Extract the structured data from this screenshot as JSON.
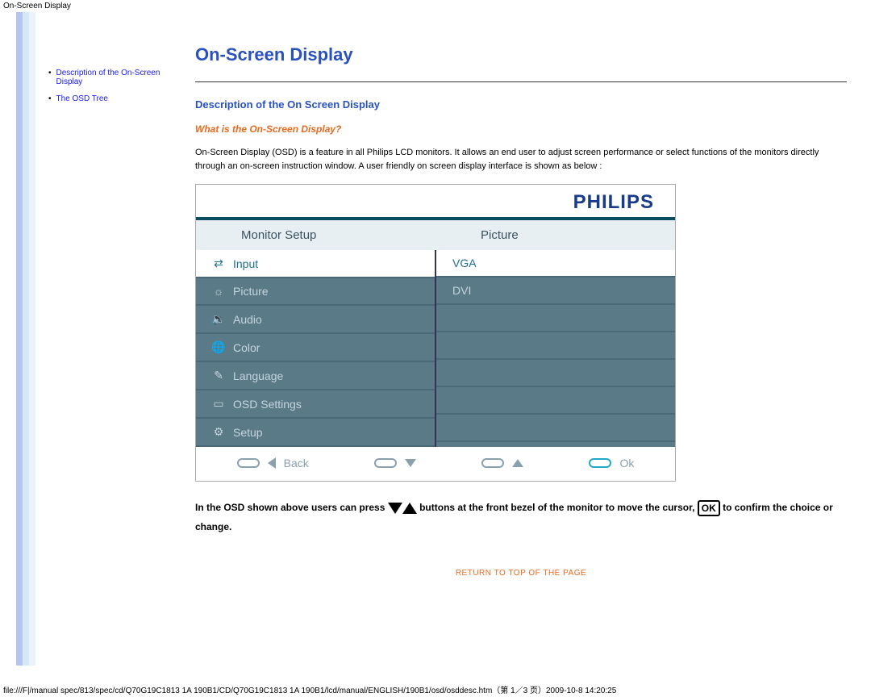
{
  "breadcrumb": "On-Screen Display",
  "sidebar": {
    "items": [
      {
        "label": "Description of the On-Screen Display"
      },
      {
        "label": "The OSD Tree"
      }
    ]
  },
  "main": {
    "title": "On-Screen Display",
    "section_heading": "Description of the On Screen Display",
    "sub_heading": "What is the On-Screen Display?",
    "paragraph": "On-Screen Display (OSD) is a feature in all Philips LCD monitors. It allows an end user to adjust screen performance or select functions of the monitors directly through an on-screen instruction window. A user friendly on screen display interface is shown as below :"
  },
  "osd": {
    "brand": "PHILIPS",
    "left_header": "Monitor Setup",
    "right_header": "Picture",
    "left_items": [
      {
        "icon": "⇄",
        "label": "Input",
        "selected": true
      },
      {
        "icon": "☼",
        "label": "Picture",
        "selected": false
      },
      {
        "icon": "🔈",
        "label": "Audio",
        "selected": false
      },
      {
        "icon": "🌐",
        "label": "Color",
        "selected": false
      },
      {
        "icon": "✎",
        "label": "Language",
        "selected": false
      },
      {
        "icon": "▭",
        "label": "OSD Settings",
        "selected": false
      },
      {
        "icon": "⚙",
        "label": "Setup",
        "selected": false
      }
    ],
    "right_items": [
      {
        "label": "VGA",
        "selected": true
      },
      {
        "label": "DVI",
        "selected": false
      }
    ],
    "nav": {
      "back": "Back",
      "ok": "Ok"
    }
  },
  "instruction": {
    "part1": "In the OSD shown above users can press",
    "part2": "buttons at the front bezel of the monitor to move the cursor,",
    "ok_label": "OK",
    "part3": "to confirm the choice or change."
  },
  "return_link": "RETURN TO TOP OF THE PAGE",
  "footer": "file:///F|/manual spec/813/spec/cd/Q70G19C1813 1A 190B1/CD/Q70G19C1813 1A 190B1/lcd/manual/ENGLISH/190B1/osd/osddesc.htm（第 1／3 页）2009-10-8 14:20:25"
}
